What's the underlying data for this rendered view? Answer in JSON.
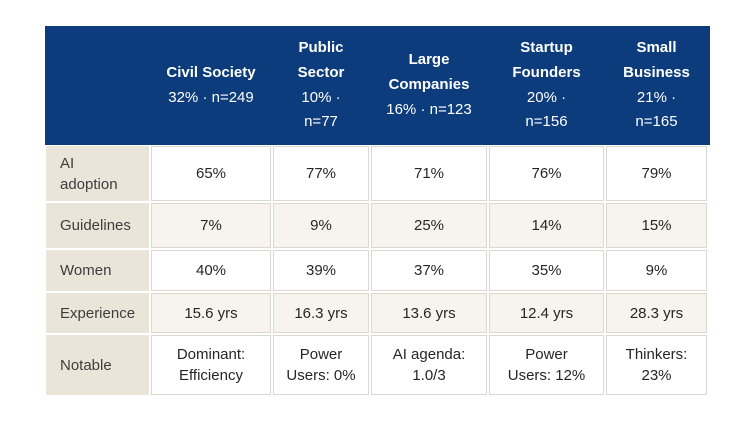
{
  "colors": {
    "page-bg": "#ffffff",
    "header-bg": "#0c3c7c",
    "header-text": "#ffffff",
    "label-bg": "#eae5d9",
    "row-bg": "#ffffff",
    "row-alt-bg": "#f7f4ee",
    "cell-border": "#dcd8cf",
    "body-text": "#262626",
    "label-text": "#3d3d3d"
  },
  "header": {
    "cells": [
      {
        "name": "",
        "stats": ""
      },
      {
        "name": "Civil Society",
        "stats": "32% · n=249"
      },
      {
        "name": "Public\nSector",
        "stats": "10% ·\nn=77"
      },
      {
        "name": "Large\nCompanies",
        "stats": "16% · n=123"
      },
      {
        "name": "Startup\nFounders",
        "stats": "20% ·\nn=156"
      },
      {
        "name": "Small\nBusiness",
        "stats": "21% ·\nn=165"
      }
    ]
  },
  "body": {
    "rows": [
      {
        "label": "AI\nadoption",
        "cells": [
          "65%",
          "77%",
          "71%",
          "76%",
          "79%"
        ]
      },
      {
        "label": "Guidelines",
        "cells": [
          "7%",
          "9%",
          "25%",
          "14%",
          "15%"
        ]
      },
      {
        "label": "Women",
        "cells": [
          "40%",
          "39%",
          "37%",
          "35%",
          "9%"
        ]
      },
      {
        "label": "Experience",
        "cells": [
          "15.6 yrs",
          "16.3 yrs",
          "13.6 yrs",
          "12.4 yrs",
          "28.3 yrs"
        ]
      },
      {
        "label": "Notable",
        "cells": [
          "Dominant:\nEfficiency",
          "Power\nUsers: 0%",
          "AI agenda:\n1.0/3",
          "Power\nUsers: 12%",
          "Thinkers:\n23%"
        ]
      }
    ]
  },
  "chart_data": {
    "type": "table",
    "title": "",
    "columns": [
      {
        "segment": "Civil Society",
        "share_pct": 32,
        "n": 249
      },
      {
        "segment": "Public Sector",
        "share_pct": 10,
        "n": 77
      },
      {
        "segment": "Large Companies",
        "share_pct": 16,
        "n": 123
      },
      {
        "segment": "Startup Founders",
        "share_pct": 20,
        "n": 156
      },
      {
        "segment": "Small Business",
        "share_pct": 21,
        "n": 165
      }
    ],
    "row_metrics": [
      "AI adoption",
      "Guidelines",
      "Women",
      "Experience",
      "Notable"
    ],
    "values": [
      [
        "65%",
        "77%",
        "71%",
        "76%",
        "79%"
      ],
      [
        "7%",
        "9%",
        "25%",
        "14%",
        "15%"
      ],
      [
        "40%",
        "39%",
        "37%",
        "35%",
        "9%"
      ],
      [
        "15.6 yrs",
        "16.3 yrs",
        "13.6 yrs",
        "12.4 yrs",
        "28.3 yrs"
      ],
      [
        "Dominant: Efficiency",
        "Power Users: 0%",
        "AI agenda: 1.0/3",
        "Power Users: 12%",
        "Thinkers: 23%"
      ]
    ]
  }
}
